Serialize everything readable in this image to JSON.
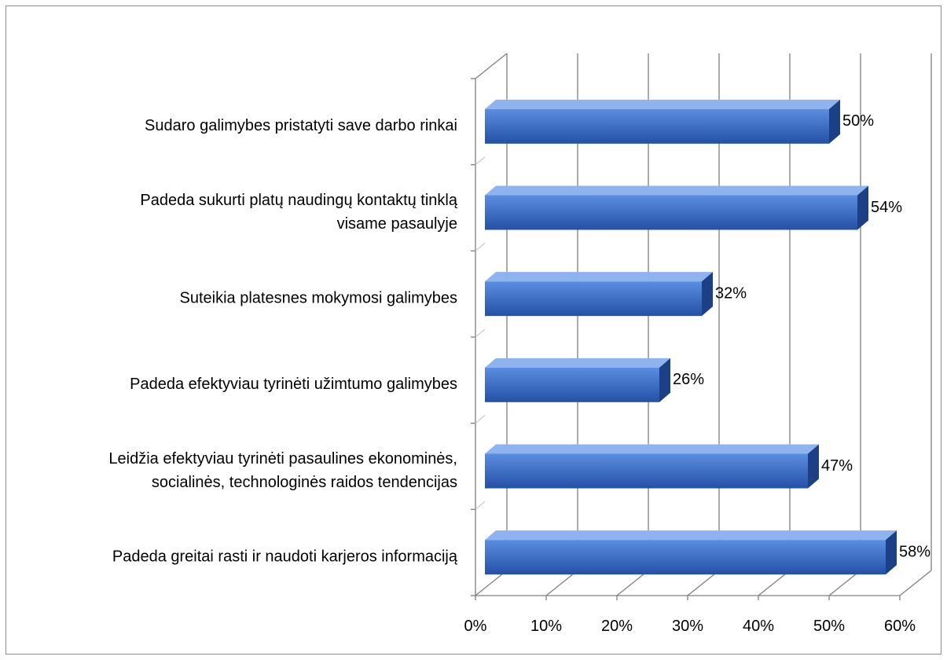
{
  "chart_data": {
    "type": "bar",
    "orientation": "horizontal",
    "three_d": true,
    "categories": [
      [
        "Sudaro galimybes pristatyti save darbo rinkai"
      ],
      [
        "Padeda sukurti platų naudingų kontaktų tinklą",
        "visame pasaulyje"
      ],
      [
        "Suteikia platesnes mokymosi galimybes"
      ],
      [
        "Padeda efektyviau tyrinėti užimtumo galimybes"
      ],
      [
        "Leidžia efektyviau tyrinėti pasaulines ekonominės,",
        "socialinės, technologinės raidos tendencijas"
      ],
      [
        "Padeda greitai rasti ir naudoti karjeros informaciją"
      ]
    ],
    "values": [
      50,
      54,
      32,
      26,
      47,
      58
    ],
    "data_labels": [
      "50%",
      "54%",
      "32%",
      "26%",
      "47%",
      "58%"
    ],
    "xlim": [
      0,
      60
    ],
    "x_ticks": [
      0,
      10,
      20,
      30,
      40,
      50,
      60
    ],
    "x_tick_labels": [
      "0%",
      "10%",
      "20%",
      "30%",
      "40%",
      "50%",
      "60%"
    ],
    "grid": true,
    "legend": "none",
    "colors": {
      "bar_front_top": "#5a8ee0",
      "bar_front_bottom": "#2450a6",
      "bar_top": "#8fb3ee",
      "bar_side": "#1c3f86",
      "grid": "#808080",
      "axis": "#808080"
    }
  }
}
